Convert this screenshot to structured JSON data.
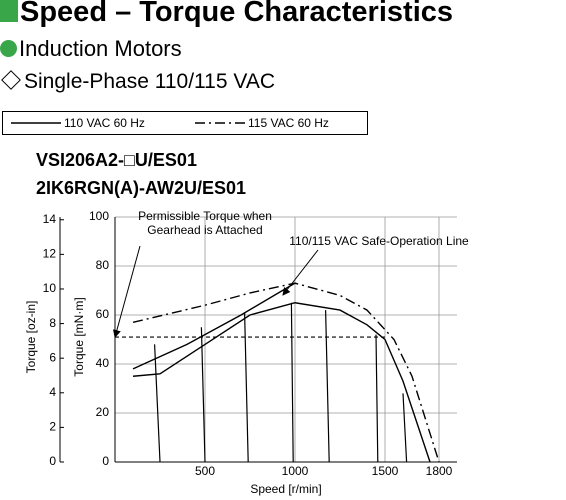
{
  "header": {
    "title": "Speed – Torque Characteristics",
    "subtitle": "Induction Motors",
    "section": "Single-Phase 110/115 VAC"
  },
  "models": [
    "VSI206A2-□U/ES01",
    "2IK6RGN(A)-AW2U/ES01"
  ],
  "chart_data": {
    "type": "line",
    "x_label": "Speed [r/min]",
    "y_label": "Torque [mN·m]",
    "y2_label": "Torque [oz-in]",
    "xlim": [
      0,
      1900
    ],
    "xticks": [
      500,
      1000,
      1500,
      1800
    ],
    "ylim": [
      0,
      100
    ],
    "yticks": [
      0,
      20,
      40,
      60,
      80,
      100
    ],
    "y2lim": [
      0,
      14.16
    ],
    "y2ticks": [
      0,
      2,
      4,
      6,
      8,
      10,
      12,
      14
    ],
    "grid": true,
    "series": [
      {
        "name": "110 VAC 60 Hz",
        "color": "#000000",
        "dash": "solid",
        "x": [
          100,
          250,
          500,
          750,
          1000,
          1250,
          1400,
          1500,
          1600,
          1750
        ],
        "values": [
          35,
          36,
          48,
          60,
          65,
          62,
          56,
          50,
          33,
          0
        ]
      },
      {
        "name": "115 VAC 60 Hz",
        "color": "#000000",
        "dash": "dashdot",
        "x": [
          100,
          500,
          750,
          1000,
          1250,
          1400,
          1550,
          1650,
          1800
        ],
        "values": [
          57,
          64,
          69,
          73,
          68,
          62,
          50,
          35,
          0
        ]
      }
    ],
    "safe_operation_line": {
      "label": "110/115 VAC Safe-Operation Line",
      "x": [
        100,
        400,
        700,
        1000
      ],
      "values": [
        38,
        48,
        60,
        73
      ]
    },
    "permissible_torque": {
      "label": [
        "Permissible Torque when",
        "Gearhead is Attached"
      ],
      "value": 51
    },
    "load_lines": [
      {
        "x": [
          220,
          250
        ],
        "values": [
          48,
          0
        ]
      },
      {
        "x": [
          480,
          500
        ],
        "values": [
          55,
          0
        ]
      },
      {
        "x": [
          720,
          740
        ],
        "values": [
          61,
          0
        ]
      },
      {
        "x": [
          980,
          990
        ],
        "values": [
          65,
          0
        ]
      },
      {
        "x": [
          1170,
          1190
        ],
        "values": [
          62,
          0
        ]
      },
      {
        "x": [
          1450,
          1460
        ],
        "values": [
          52,
          0
        ]
      },
      {
        "x": [
          1600,
          1620
        ],
        "values": [
          28,
          0
        ]
      }
    ]
  }
}
